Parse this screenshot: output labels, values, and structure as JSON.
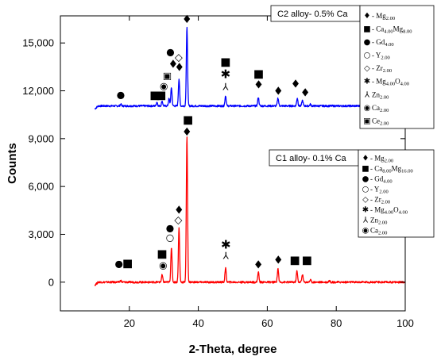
{
  "chart_data": {
    "type": "line",
    "xlabel": "2-Theta, degree",
    "ylabel": "Counts",
    "xlim": [
      0,
      100
    ],
    "ylim": [
      -1800,
      16700
    ],
    "x_ticks": [
      {
        "value": 20,
        "label": "20"
      },
      {
        "value": 40,
        "label": "40"
      },
      {
        "value": 60,
        "label": "60"
      },
      {
        "value": 80,
        "label": "80"
      },
      {
        "value": 100,
        "label": "100"
      }
    ],
    "y_ticks": [
      {
        "value": 0,
        "label": "0"
      },
      {
        "value": 3000,
        "label": "3,000"
      },
      {
        "value": 6000,
        "label": "6,000"
      },
      {
        "value": 9000,
        "label": "9,000"
      },
      {
        "value": 12000,
        "label": "12,000"
      },
      {
        "value": 15000,
        "label": "15,000"
      }
    ],
    "series": [
      {
        "color": "#0000ff",
        "baseline": 11050,
        "x_range": [
          10,
          100
        ],
        "peaks": [
          [
            17.5,
            100
          ],
          [
            28.0,
            250
          ],
          [
            29.5,
            300
          ],
          [
            31.5,
            450
          ],
          [
            32.2,
            1150
          ],
          [
            34.4,
            1700
          ],
          [
            36.7,
            4900
          ],
          [
            47.9,
            650
          ],
          [
            57.4,
            550
          ],
          [
            63.1,
            500
          ],
          [
            68.7,
            500
          ],
          [
            70.2,
            350
          ],
          [
            72.5,
            100
          ]
        ]
      },
      {
        "color": "#ff0000",
        "baseline": 0,
        "x_range": [
          10,
          100
        ],
        "peaks": [
          [
            17.5,
            100
          ],
          [
            29.5,
            450
          ],
          [
            32.2,
            2200
          ],
          [
            34.4,
            3400
          ],
          [
            36.7,
            9100
          ],
          [
            47.9,
            900
          ],
          [
            57.4,
            650
          ],
          [
            63.1,
            850
          ],
          [
            68.6,
            700
          ],
          [
            70.2,
            500
          ],
          [
            72.5,
            150
          ],
          [
            78.0,
            100
          ]
        ]
      }
    ],
    "panels": [
      {
        "alloy_label": "C2 alloy- 0.5% Ca",
        "legend": [
          {
            "symbol": "♦",
            "prefix": " - ",
            "text": [
              [
                "Mg",
                ""
              ],
              [
                "2.00",
                "sub"
              ]
            ]
          },
          {
            "symbol": "■",
            "prefix": " - ",
            "text": [
              [
                "Ca",
                ""
              ],
              [
                "4.00",
                "sub"
              ],
              [
                "Mg",
                ""
              ],
              [
                "8.00",
                "sub"
              ]
            ]
          },
          {
            "symbol": "●",
            "prefix": " - ",
            "text": [
              [
                "Gd",
                ""
              ],
              [
                "4.00",
                "sub"
              ]
            ]
          },
          {
            "symbol": "○",
            "prefix": " - ",
            "text": [
              [
                "Y",
                ""
              ],
              [
                "2.00",
                "sub"
              ]
            ]
          },
          {
            "symbol": "◇",
            "prefix": " - ",
            "text": [
              [
                "Zr",
                ""
              ],
              [
                "2.00",
                "sub"
              ]
            ]
          },
          {
            "symbol": "✱",
            "prefix": " - ",
            "text": [
              [
                "Mg",
                ""
              ],
              [
                "4.00",
                "sub"
              ],
              [
                "O",
                ""
              ],
              [
                "4.00",
                "sub"
              ]
            ]
          },
          {
            "symbol": "⅄",
            "prefix": " ",
            "text": [
              [
                "Zn",
                ""
              ],
              [
                "2.00",
                "sub"
              ]
            ]
          },
          {
            "symbol": "◉",
            "prefix": " ",
            "text": [
              [
                "Ca",
                ""
              ],
              [
                "2.00",
                "sub"
              ]
            ]
          },
          {
            "symbol": "▣",
            "prefix": " ",
            "text": [
              [
                "Ce",
                ""
              ],
              [
                "2.00",
                "sub"
              ]
            ]
          }
        ],
        "peak_markers": [
          {
            "symbol": "●",
            "x": 17.5,
            "y": 11550
          },
          {
            "symbol": "■",
            "x": 27.4,
            "y": 11500
          },
          {
            "symbol": "■",
            "x": 29.2,
            "y": 11500
          },
          {
            "symbol": "◉",
            "x": 30.0,
            "y": 12100
          },
          {
            "symbol": "▣",
            "x": 31.0,
            "y": 12750
          },
          {
            "symbol": "●",
            "x": 31.9,
            "y": 14250
          },
          {
            "symbol": "♦",
            "x": 32.7,
            "y": 13450
          },
          {
            "symbol": "◇",
            "x": 34.3,
            "y": 13900
          },
          {
            "symbol": "♦",
            "x": 34.5,
            "y": 13250
          },
          {
            "symbol": "♦",
            "x": 36.7,
            "y": 16250
          },
          {
            "symbol": "■",
            "x": 47.9,
            "y": 13600
          },
          {
            "symbol": "✱",
            "x": 47.9,
            "y": 12800
          },
          {
            "symbol": "⅄",
            "x": 47.9,
            "y": 12050
          },
          {
            "symbol": "■",
            "x": 57.5,
            "y": 12850
          },
          {
            "symbol": "♦",
            "x": 57.5,
            "y": 12150
          },
          {
            "symbol": "♦",
            "x": 63.2,
            "y": 11750
          },
          {
            "symbol": "♦",
            "x": 68.2,
            "y": 12200
          },
          {
            "symbol": "♦",
            "x": 71.0,
            "y": 11650
          }
        ]
      },
      {
        "alloy_label": "C1 alloy- 0.1% Ca",
        "legend": [
          {
            "symbol": "♦",
            "prefix": " - ",
            "text": [
              [
                "Mg",
                ""
              ],
              [
                "2.00",
                "sub"
              ]
            ]
          },
          {
            "symbol": "■",
            "prefix": " - ",
            "text": [
              [
                "Ca",
                ""
              ],
              [
                "8.00",
                "sub"
              ],
              [
                "Mg",
                ""
              ],
              [
                "16.00",
                "sub"
              ]
            ]
          },
          {
            "symbol": "●",
            "prefix": " - ",
            "text": [
              [
                "Gd",
                ""
              ],
              [
                "4.00",
                "sub"
              ]
            ]
          },
          {
            "symbol": "○",
            "prefix": " - ",
            "text": [
              [
                "Y",
                ""
              ],
              [
                "2.00",
                "sub"
              ]
            ]
          },
          {
            "symbol": "◇",
            "prefix": " - ",
            "text": [
              [
                "Zr",
                ""
              ],
              [
                "2.00",
                "sub"
              ]
            ]
          },
          {
            "symbol": "✱",
            "prefix": " - ",
            "text": [
              [
                "Mg",
                ""
              ],
              [
                "4.00",
                "sub"
              ],
              [
                "O",
                ""
              ],
              [
                "4.00",
                "sub"
              ]
            ]
          },
          {
            "symbol": "⅄",
            "prefix": " ",
            "text": [
              [
                "Zn",
                ""
              ],
              [
                "2.00",
                "sub"
              ]
            ]
          },
          {
            "symbol": "◉",
            "prefix": " ",
            "text": [
              [
                "Ca",
                ""
              ],
              [
                "2.00",
                "sub"
              ]
            ]
          }
        ],
        "peak_markers": [
          {
            "symbol": "●",
            "x": 17.0,
            "y": 950
          },
          {
            "symbol": "■",
            "x": 19.5,
            "y": 950
          },
          {
            "symbol": "■",
            "x": 29.5,
            "y": 1550
          },
          {
            "symbol": "◉",
            "x": 29.8,
            "y": 850
          },
          {
            "symbol": "●",
            "x": 31.8,
            "y": 3200
          },
          {
            "symbol": "○",
            "x": 31.8,
            "y": 2600
          },
          {
            "symbol": "◇",
            "x": 34.2,
            "y": 3700
          },
          {
            "symbol": "♦",
            "x": 34.4,
            "y": 4300
          },
          {
            "symbol": "♦",
            "x": 36.7,
            "y": 9200
          },
          {
            "symbol": "■",
            "x": 37.0,
            "y": 9950
          },
          {
            "symbol": "✱",
            "x": 48.0,
            "y": 2100
          },
          {
            "symbol": "⅄",
            "x": 48.0,
            "y": 1450
          },
          {
            "symbol": "♦",
            "x": 57.4,
            "y": 850
          },
          {
            "symbol": "♦",
            "x": 63.2,
            "y": 1150
          },
          {
            "symbol": "■",
            "x": 68.0,
            "y": 1150
          },
          {
            "symbol": "■",
            "x": 71.5,
            "y": 1150
          }
        ]
      }
    ]
  }
}
